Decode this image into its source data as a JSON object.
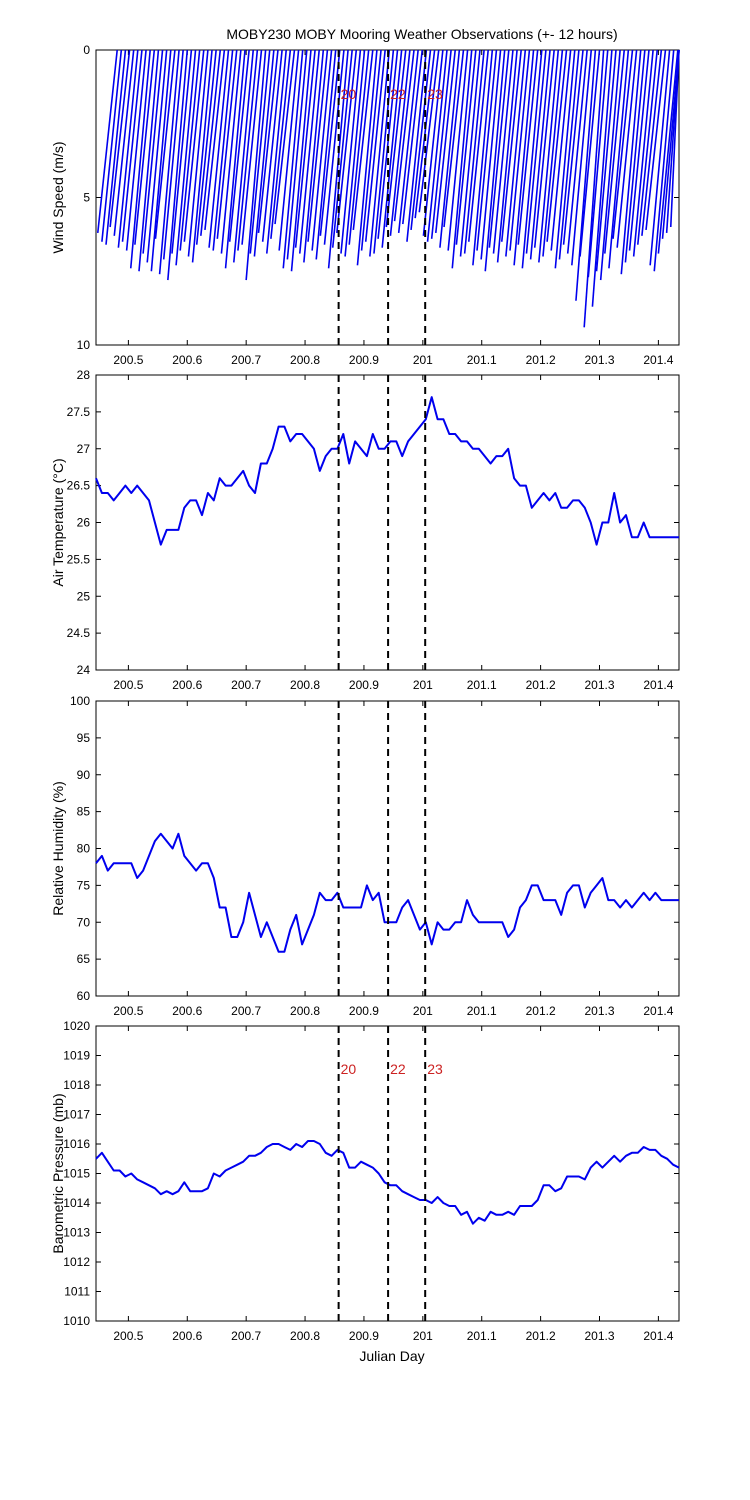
{
  "title": "MOBY230 MOBY Mooring Weather Observations (+- 12 hours)",
  "series_color": "#0000ee",
  "marker_color": "#cc2222",
  "xlabel": "Julian Day",
  "x_ticks": [
    200.5,
    200.6,
    200.7,
    200.8,
    200.9,
    201,
    201.1,
    201.2,
    201.3,
    201.4
  ],
  "x_tick_labels": [
    "200.5",
    "200.6",
    "200.7",
    "200.8",
    "200.9",
    "201",
    "201.1",
    "201.2",
    "201.3",
    "201.4"
  ],
  "markers": [
    {
      "label": "20",
      "x": 200.857
    },
    {
      "label": "22",
      "x": 200.941
    },
    {
      "label": "23",
      "x": 201.004
    }
  ],
  "chart_data": [
    {
      "type": "scatter",
      "ylabel": "Wind Speed (m/s)",
      "xlim": [
        200.445,
        201.435
      ],
      "ylim": [
        0,
        10
      ],
      "y_inverted": true,
      "y_ticks": [
        0,
        5,
        10
      ],
      "y_tick_labels": [
        "0",
        "5",
        "10"
      ],
      "show_markers": true,
      "marker_label_pos": "top",
      "wind_stick_dx": 0.033,
      "x": [
        200.448,
        200.455,
        200.462,
        200.469,
        200.476,
        200.483,
        200.49,
        200.497,
        200.504,
        200.511,
        200.518,
        200.525,
        200.532,
        200.539,
        200.546,
        200.553,
        200.56,
        200.567,
        200.574,
        200.581,
        200.588,
        200.595,
        200.602,
        200.609,
        200.616,
        200.623,
        200.63,
        200.637,
        200.644,
        200.651,
        200.658,
        200.665,
        200.672,
        200.679,
        200.686,
        200.693,
        200.7,
        200.707,
        200.714,
        200.721,
        200.728,
        200.735,
        200.742,
        200.749,
        200.756,
        200.763,
        200.77,
        200.777,
        200.784,
        200.791,
        200.798,
        200.805,
        200.812,
        200.819,
        200.826,
        200.833,
        200.84,
        200.847,
        200.854,
        200.861,
        200.868,
        200.875,
        200.882,
        200.889,
        200.896,
        200.903,
        200.91,
        200.917,
        200.924,
        200.931,
        200.938,
        200.945,
        200.952,
        200.959,
        200.966,
        200.973,
        200.98,
        200.987,
        200.994,
        201.001,
        201.008,
        201.015,
        201.022,
        201.029,
        201.036,
        201.043,
        201.05,
        201.057,
        201.064,
        201.071,
        201.078,
        201.085,
        201.092,
        201.099,
        201.106,
        201.113,
        201.12,
        201.127,
        201.134,
        201.141,
        201.148,
        201.155,
        201.162,
        201.169,
        201.176,
        201.183,
        201.19,
        201.197,
        201.204,
        201.211,
        201.218,
        201.225,
        201.232,
        201.239,
        201.246,
        201.253,
        201.26,
        201.267,
        201.274,
        201.281,
        201.288,
        201.295,
        201.302,
        201.309,
        201.316,
        201.323,
        201.33,
        201.337,
        201.344,
        201.351,
        201.358,
        201.365,
        201.372,
        201.379,
        201.386,
        201.393,
        201.4,
        201.407,
        201.414,
        201.421
      ],
      "y": [
        6.2,
        6.5,
        6.6,
        6.0,
        6.3,
        6.7,
        6.5,
        6.8,
        7.4,
        6.6,
        7.5,
        6.9,
        7.2,
        7.5,
        6.4,
        7.6,
        7.1,
        7.8,
        6.9,
        7.3,
        6.8,
        6.5,
        7.0,
        7.2,
        6.6,
        6.3,
        6.1,
        6.7,
        6.8,
        6.4,
        6.9,
        7.4,
        6.5,
        7.2,
        6.8,
        6.6,
        7.8,
        6.9,
        7.0,
        6.2,
        6.5,
        6.9,
        6.4,
        5.9,
        6.8,
        7.4,
        7.1,
        7.5,
        6.7,
        6.9,
        7.2,
        6.5,
        6.8,
        7.1,
        6.3,
        6.6,
        7.4,
        6.7,
        6.2,
        6.9,
        7.0,
        6.6,
        6.1,
        7.3,
        6.8,
        6.5,
        7.0,
        6.9,
        6.4,
        6.7,
        6.0,
        6.3,
        5.8,
        6.2,
        5.9,
        6.5,
        6.1,
        5.7,
        5.5,
        6.3,
        6.5,
        6.4,
        6.2,
        6.7,
        6.0,
        6.8,
        7.4,
        6.6,
        7.0,
        6.9,
        6.5,
        7.3,
        6.8,
        7.1,
        7.5,
        6.7,
        6.9,
        7.2,
        6.5,
        7.0,
        6.8,
        7.3,
        6.6,
        7.4,
        6.9,
        7.1,
        6.7,
        7.2,
        7.0,
        6.5,
        6.8,
        7.4,
        7.1,
        6.6,
        6.9,
        7.3,
        8.5,
        7.0,
        9.4,
        7.7,
        8.7,
        7.5,
        7.8,
        6.9,
        7.4,
        6.4,
        6.7,
        7.6,
        7.2,
        6.8,
        7.0,
        6.6,
        6.3,
        6.1,
        7.3,
        7.5,
        6.9,
        6.4,
        6.2,
        6.0
      ]
    },
    {
      "type": "line",
      "ylabel": "Air Temperature (°C)",
      "xlim": [
        200.445,
        201.435
      ],
      "ylim": [
        24,
        28
      ],
      "y_ticks": [
        24,
        24.5,
        25,
        25.5,
        26,
        26.5,
        27,
        27.5,
        28
      ],
      "y_tick_labels": [
        "24",
        "24.5",
        "25",
        "25.5",
        "26",
        "26.5",
        "27",
        "27.5",
        "28"
      ],
      "show_markers": false,
      "x": [
        200.445,
        200.455,
        200.465,
        200.475,
        200.485,
        200.495,
        200.505,
        200.515,
        200.525,
        200.535,
        200.545,
        200.555,
        200.565,
        200.575,
        200.585,
        200.595,
        200.605,
        200.615,
        200.625,
        200.635,
        200.645,
        200.655,
        200.665,
        200.675,
        200.685,
        200.695,
        200.705,
        200.715,
        200.725,
        200.735,
        200.745,
        200.755,
        200.765,
        200.775,
        200.785,
        200.795,
        200.805,
        200.815,
        200.825,
        200.835,
        200.845,
        200.855,
        200.865,
        200.875,
        200.885,
        200.895,
        200.905,
        200.915,
        200.925,
        200.935,
        200.945,
        200.955,
        200.965,
        200.975,
        200.985,
        200.995,
        201.005,
        201.015,
        201.025,
        201.035,
        201.045,
        201.055,
        201.065,
        201.075,
        201.085,
        201.095,
        201.105,
        201.115,
        201.125,
        201.135,
        201.145,
        201.155,
        201.165,
        201.175,
        201.185,
        201.195,
        201.205,
        201.215,
        201.225,
        201.235,
        201.245,
        201.255,
        201.265,
        201.275,
        201.285,
        201.295,
        201.305,
        201.315,
        201.325,
        201.335,
        201.345,
        201.355,
        201.365,
        201.375,
        201.385,
        201.395,
        201.405,
        201.415,
        201.425,
        201.435
      ],
      "y": [
        26.6,
        26.4,
        26.4,
        26.3,
        26.4,
        26.5,
        26.4,
        26.5,
        26.4,
        26.3,
        26.0,
        25.7,
        25.9,
        25.9,
        25.9,
        26.2,
        26.3,
        26.3,
        26.1,
        26.4,
        26.3,
        26.6,
        26.5,
        26.5,
        26.6,
        26.7,
        26.5,
        26.4,
        26.8,
        26.8,
        27.0,
        27.3,
        27.3,
        27.1,
        27.2,
        27.2,
        27.1,
        27.0,
        26.7,
        26.9,
        27.0,
        27.0,
        27.2,
        26.8,
        27.1,
        27.0,
        26.9,
        27.2,
        27.0,
        27.0,
        27.1,
        27.1,
        26.9,
        27.1,
        27.2,
        27.3,
        27.4,
        27.7,
        27.4,
        27.4,
        27.2,
        27.2,
        27.1,
        27.1,
        27.0,
        27.0,
        26.9,
        26.8,
        26.9,
        26.9,
        27.0,
        26.6,
        26.5,
        26.5,
        26.2,
        26.3,
        26.4,
        26.3,
        26.4,
        26.2,
        26.2,
        26.3,
        26.3,
        26.2,
        26.0,
        25.7,
        26.0,
        26.0,
        26.4,
        26.0,
        26.1,
        25.8,
        25.8,
        26.0,
        25.8,
        25.8,
        25.8,
        25.8,
        25.8,
        25.8
      ]
    },
    {
      "type": "line",
      "ylabel": "Relative Humidity (%)",
      "xlim": [
        200.445,
        201.435
      ],
      "ylim": [
        60,
        100
      ],
      "y_ticks": [
        60,
        65,
        70,
        75,
        80,
        85,
        90,
        95,
        100
      ],
      "y_tick_labels": [
        "60",
        "65",
        "70",
        "75",
        "80",
        "85",
        "90",
        "95",
        "100"
      ],
      "show_markers": false,
      "x": [
        200.445,
        200.455,
        200.465,
        200.475,
        200.485,
        200.495,
        200.505,
        200.515,
        200.525,
        200.535,
        200.545,
        200.555,
        200.565,
        200.575,
        200.585,
        200.595,
        200.605,
        200.615,
        200.625,
        200.635,
        200.645,
        200.655,
        200.665,
        200.675,
        200.685,
        200.695,
        200.705,
        200.715,
        200.725,
        200.735,
        200.745,
        200.755,
        200.765,
        200.775,
        200.785,
        200.795,
        200.805,
        200.815,
        200.825,
        200.835,
        200.845,
        200.855,
        200.865,
        200.875,
        200.885,
        200.895,
        200.905,
        200.915,
        200.925,
        200.935,
        200.945,
        200.955,
        200.965,
        200.975,
        200.985,
        200.995,
        201.005,
        201.015,
        201.025,
        201.035,
        201.045,
        201.055,
        201.065,
        201.075,
        201.085,
        201.095,
        201.105,
        201.115,
        201.125,
        201.135,
        201.145,
        201.155,
        201.165,
        201.175,
        201.185,
        201.195,
        201.205,
        201.215,
        201.225,
        201.235,
        201.245,
        201.255,
        201.265,
        201.275,
        201.285,
        201.295,
        201.305,
        201.315,
        201.325,
        201.335,
        201.345,
        201.355,
        201.365,
        201.375,
        201.385,
        201.395,
        201.405,
        201.415,
        201.425,
        201.435
      ],
      "y": [
        78,
        79,
        77,
        78,
        78,
        78,
        78,
        76,
        77,
        79,
        81,
        82,
        81,
        80,
        82,
        79,
        78,
        77,
        78,
        78,
        76,
        72,
        72,
        68,
        68,
        70,
        74,
        71,
        68,
        70,
        68,
        66,
        66,
        69,
        71,
        67,
        69,
        71,
        74,
        73,
        73,
        74,
        72,
        72,
        72,
        72,
        75,
        73,
        74,
        70,
        70,
        70,
        72,
        73,
        71,
        69,
        70,
        67,
        70,
        69,
        69,
        70,
        70,
        73,
        71,
        70,
        70,
        70,
        70,
        70,
        68,
        69,
        72,
        73,
        75,
        75,
        73,
        73,
        73,
        71,
        74,
        75,
        75,
        72,
        74,
        75,
        76,
        73,
        73,
        72,
        73,
        72,
        73,
        74,
        73,
        74,
        73,
        73,
        73,
        73
      ]
    },
    {
      "type": "line",
      "ylabel": "Barometric Pressure (mb)",
      "xlim": [
        200.445,
        201.435
      ],
      "ylim": [
        1010,
        1020
      ],
      "y_ticks": [
        1010,
        1011,
        1012,
        1013,
        1014,
        1015,
        1016,
        1017,
        1018,
        1019,
        1020
      ],
      "y_tick_labels": [
        "1010",
        "1011",
        "1012",
        "1013",
        "1014",
        "1015",
        "1016",
        "1017",
        "1018",
        "1019",
        "1020"
      ],
      "show_markers": true,
      "marker_label_pos": "middle",
      "x": [
        200.445,
        200.455,
        200.465,
        200.475,
        200.485,
        200.495,
        200.505,
        200.515,
        200.525,
        200.535,
        200.545,
        200.555,
        200.565,
        200.575,
        200.585,
        200.595,
        200.605,
        200.615,
        200.625,
        200.635,
        200.645,
        200.655,
        200.665,
        200.675,
        200.685,
        200.695,
        200.705,
        200.715,
        200.725,
        200.735,
        200.745,
        200.755,
        200.765,
        200.775,
        200.785,
        200.795,
        200.805,
        200.815,
        200.825,
        200.835,
        200.845,
        200.855,
        200.865,
        200.875,
        200.885,
        200.895,
        200.905,
        200.915,
        200.925,
        200.935,
        200.945,
        200.955,
        200.965,
        200.975,
        200.985,
        200.995,
        201.005,
        201.015,
        201.025,
        201.035,
        201.045,
        201.055,
        201.065,
        201.075,
        201.085,
        201.095,
        201.105,
        201.115,
        201.125,
        201.135,
        201.145,
        201.155,
        201.165,
        201.175,
        201.185,
        201.195,
        201.205,
        201.215,
        201.225,
        201.235,
        201.245,
        201.255,
        201.265,
        201.275,
        201.285,
        201.295,
        201.305,
        201.315,
        201.325,
        201.335,
        201.345,
        201.355,
        201.365,
        201.375,
        201.385,
        201.395,
        201.405,
        201.415,
        201.425,
        201.435
      ],
      "y": [
        1015.5,
        1015.7,
        1015.4,
        1015.1,
        1015.1,
        1014.9,
        1015.0,
        1014.8,
        1014.7,
        1014.6,
        1014.5,
        1014.3,
        1014.4,
        1014.3,
        1014.4,
        1014.7,
        1014.4,
        1014.4,
        1014.4,
        1014.5,
        1015.0,
        1014.9,
        1015.1,
        1015.2,
        1015.3,
        1015.4,
        1015.6,
        1015.6,
        1015.7,
        1015.9,
        1016.0,
        1016.0,
        1015.9,
        1015.8,
        1016.0,
        1015.9,
        1016.1,
        1016.1,
        1016.0,
        1015.7,
        1015.6,
        1015.8,
        1015.7,
        1015.2,
        1015.2,
        1015.4,
        1015.3,
        1015.2,
        1015.0,
        1014.7,
        1014.6,
        1014.6,
        1014.4,
        1014.3,
        1014.2,
        1014.1,
        1014.1,
        1014.0,
        1014.2,
        1014.0,
        1013.9,
        1013.9,
        1013.6,
        1013.7,
        1013.3,
        1013.5,
        1013.4,
        1013.7,
        1013.6,
        1013.6,
        1013.7,
        1013.6,
        1013.9,
        1013.9,
        1013.9,
        1014.1,
        1014.6,
        1014.6,
        1014.4,
        1014.5,
        1014.9,
        1014.9,
        1014.9,
        1014.8,
        1015.2,
        1015.4,
        1015.2,
        1015.4,
        1015.6,
        1015.4,
        1015.6,
        1015.7,
        1015.7,
        1015.9,
        1015.8,
        1015.8,
        1015.6,
        1015.5,
        1015.3,
        1015.2
      ]
    }
  ]
}
